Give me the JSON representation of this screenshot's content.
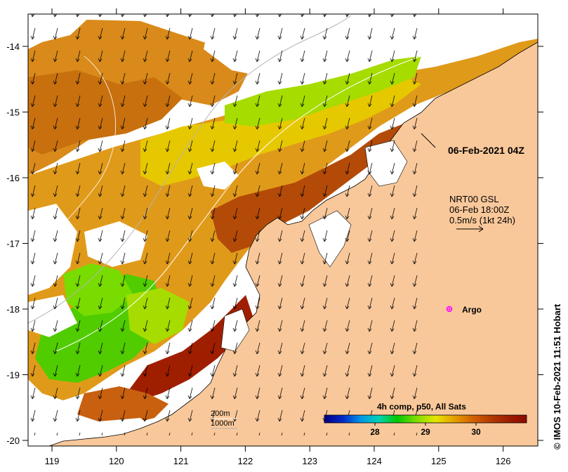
{
  "map": {
    "composite_label": "06-Feb-2021 04Z",
    "current": {
      "line1": "NRT00 GSL",
      "line2": "06-Feb 18:00Z",
      "line3": "0.5m/s (1kt 24h)"
    },
    "argo_label": "Argo",
    "isobaths": {
      "shallow": "200m",
      "deep": "1000m"
    },
    "credit": "IMOS 10-Feb-2021 11:51 Hobart",
    "credit_symbol": "©",
    "colors": {
      "land": "#f9c89a",
      "coast": "#000000",
      "isobath_200": "#ffffff",
      "isobath_1000": "#b4b4b4",
      "argo": "#ff00ff"
    }
  },
  "axes": {
    "x_ticks": [
      "119",
      "120",
      "121",
      "122",
      "123",
      "124",
      "125",
      "126"
    ],
    "y_ticks": [
      "-14",
      "-15",
      "-16",
      "-17",
      "-18",
      "-19",
      "-20"
    ]
  },
  "colorbar": {
    "title": "4h comp, p50, All Sats",
    "ticks": [
      "28",
      "29",
      "30"
    ],
    "range": [
      27.0,
      31.0
    ],
    "colors": [
      "#00007f",
      "#0028c8",
      "#0096e6",
      "#00d2b4",
      "#00c800",
      "#78dc00",
      "#e6e600",
      "#e6a000",
      "#d26400",
      "#b43c00",
      "#a01e00",
      "#8c0a00"
    ]
  }
}
